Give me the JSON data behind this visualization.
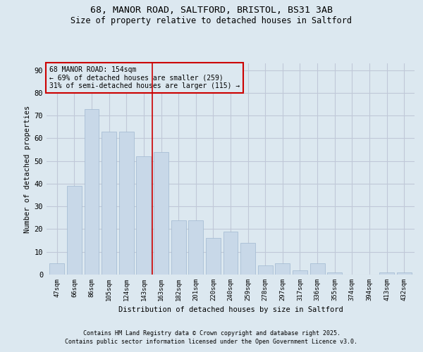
{
  "title1": "68, MANOR ROAD, SALTFORD, BRISTOL, BS31 3AB",
  "title2": "Size of property relative to detached houses in Saltford",
  "xlabel": "Distribution of detached houses by size in Saltford",
  "ylabel": "Number of detached properties",
  "categories": [
    "47sqm",
    "66sqm",
    "86sqm",
    "105sqm",
    "124sqm",
    "143sqm",
    "163sqm",
    "182sqm",
    "201sqm",
    "220sqm",
    "240sqm",
    "259sqm",
    "278sqm",
    "297sqm",
    "317sqm",
    "336sqm",
    "355sqm",
    "374sqm",
    "394sqm",
    "413sqm",
    "432sqm"
  ],
  "values": [
    5,
    39,
    73,
    63,
    63,
    52,
    54,
    24,
    24,
    16,
    19,
    14,
    4,
    5,
    2,
    5,
    1,
    0,
    0,
    1,
    1
  ],
  "bar_color": "#c8d8e8",
  "bar_edge_color": "#a0b8d0",
  "grid_color": "#c0c8d8",
  "background_color": "#dce8f0",
  "annotation_box_text": "68 MANOR ROAD: 154sqm\n← 69% of detached houses are smaller (259)\n31% of semi-detached houses are larger (115) →",
  "vline_x_index": 5.5,
  "vline_color": "#cc0000",
  "ylim": [
    0,
    93
  ],
  "yticks": [
    0,
    10,
    20,
    30,
    40,
    50,
    60,
    70,
    80,
    90
  ],
  "footer1": "Contains HM Land Registry data © Crown copyright and database right 2025.",
  "footer2": "Contains public sector information licensed under the Open Government Licence v3.0."
}
